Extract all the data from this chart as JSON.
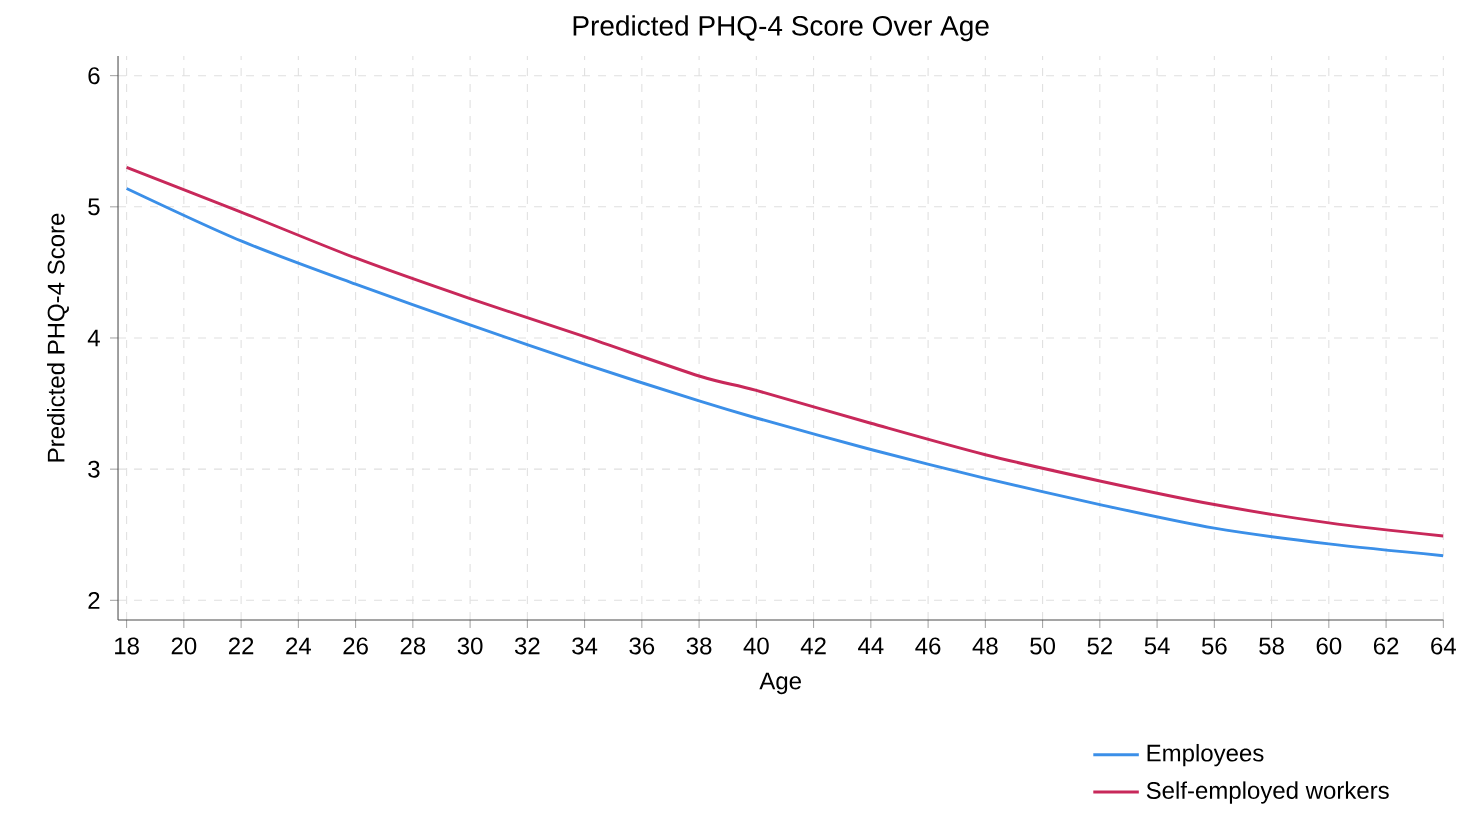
{
  "chart_data": {
    "type": "line",
    "title": "Predicted PHQ-4 Score Over Age",
    "xlabel": "Age",
    "ylabel": "Predicted PHQ-4 Score",
    "x": [
      18,
      22,
      26,
      30,
      34,
      38,
      40,
      44,
      48,
      52,
      56,
      60,
      64
    ],
    "series": [
      {
        "name": "Employees",
        "color": "#3b8fe8",
        "values": [
          5.14,
          4.74,
          4.41,
          4.1,
          3.8,
          3.52,
          3.39,
          3.15,
          2.93,
          2.73,
          2.55,
          2.43,
          2.34
        ]
      },
      {
        "name": "Self-employed workers",
        "color": "#c8285a",
        "values": [
          5.3,
          4.96,
          4.61,
          4.3,
          4.01,
          3.71,
          3.6,
          3.35,
          3.11,
          2.91,
          2.73,
          2.59,
          2.49
        ]
      }
    ],
    "xlim": [
      17.7,
      64
    ],
    "ylim": [
      1.85,
      6.15
    ],
    "xticks": [
      18,
      20,
      22,
      24,
      26,
      28,
      30,
      32,
      34,
      36,
      38,
      40,
      42,
      44,
      46,
      48,
      50,
      52,
      54,
      56,
      58,
      60,
      62,
      64
    ],
    "yticks": [
      2,
      3,
      4,
      5,
      6
    ],
    "grid": true,
    "legend": "bottom right",
    "marker": "none",
    "line_style": "solid"
  }
}
